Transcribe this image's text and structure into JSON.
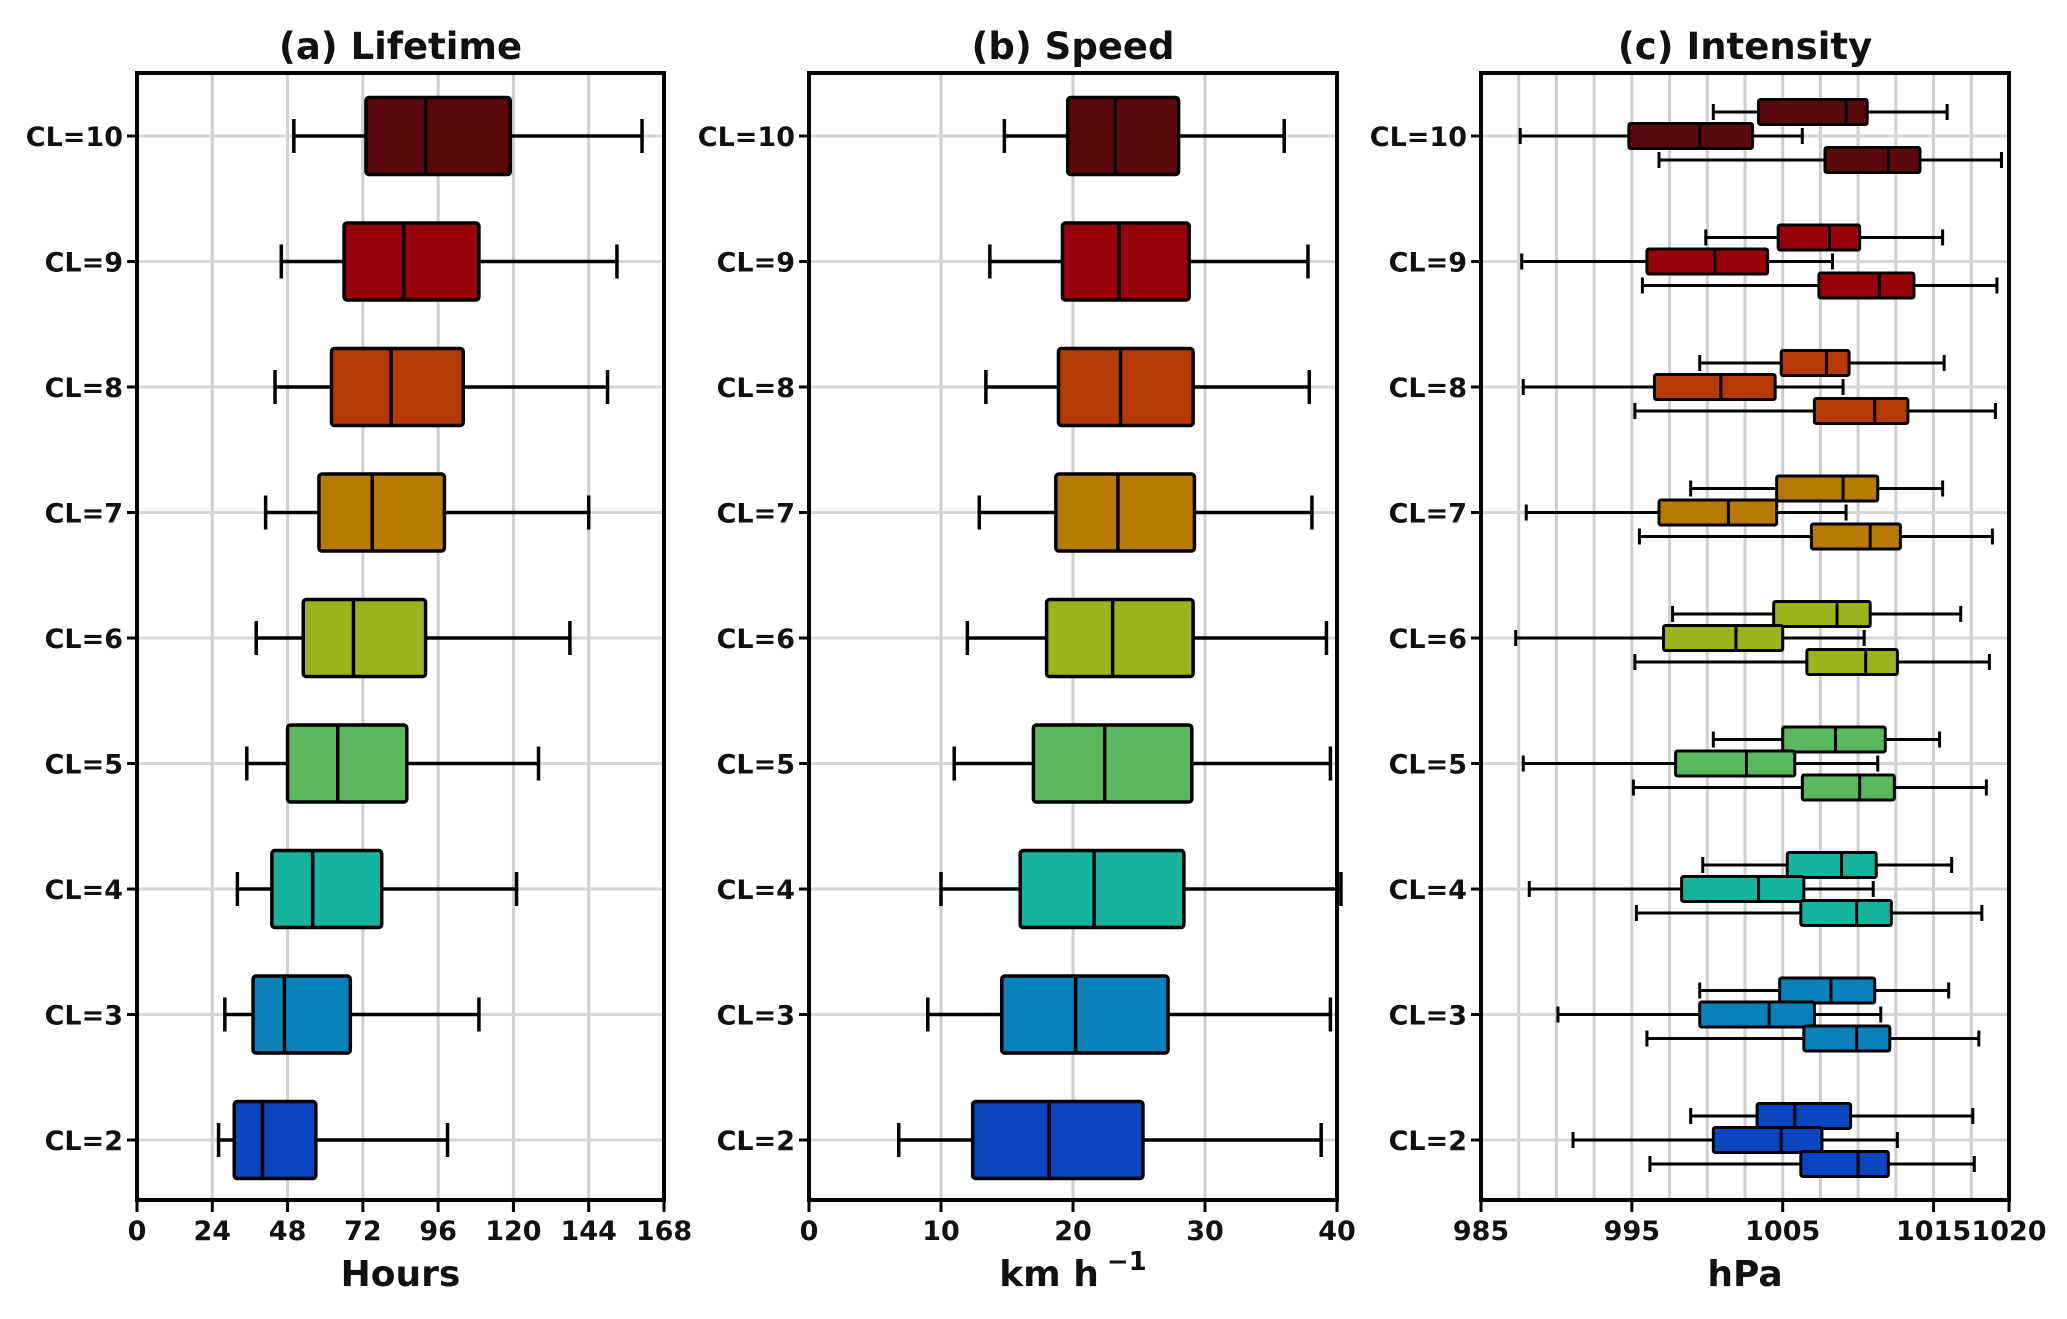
{
  "chart_data": [
    {
      "type": "boxplot",
      "title": "(a) Lifetime",
      "xlabel": "Hours",
      "xlim": [
        0,
        168
      ],
      "xticks": [
        0,
        24,
        48,
        72,
        96,
        120,
        144,
        168
      ],
      "grid": true,
      "categories": [
        "CL=10",
        "CL=9",
        "CL=8",
        "CL=7",
        "CL=6",
        "CL=5",
        "CL=4",
        "CL=3",
        "CL=2"
      ],
      "series": [
        {
          "boxes": [
            {
              "min": 50,
              "q1": 73,
              "median": 92,
              "q3": 119,
              "max": 161
            },
            {
              "min": 46,
              "q1": 66,
              "median": 85,
              "q3": 109,
              "max": 153
            },
            {
              "min": 44,
              "q1": 62,
              "median": 81,
              "q3": 104,
              "max": 150
            },
            {
              "min": 41,
              "q1": 58,
              "median": 75,
              "q3": 98,
              "max": 144
            },
            {
              "min": 38,
              "q1": 53,
              "median": 69,
              "q3": 92,
              "max": 138
            },
            {
              "min": 35,
              "q1": 48,
              "median": 64,
              "q3": 86,
              "max": 128
            },
            {
              "min": 32,
              "q1": 43,
              "median": 56,
              "q3": 78,
              "max": 121
            },
            {
              "min": 28,
              "q1": 37,
              "median": 47,
              "q3": 68,
              "max": 109
            },
            {
              "min": 26,
              "q1": 31,
              "median": 40,
              "q3": 57,
              "max": 99
            }
          ]
        }
      ]
    },
    {
      "type": "boxplot",
      "title": "(b) Speed",
      "xlabel": "km h",
      "xlabel_sup": "−1",
      "xlim": [
        0,
        40
      ],
      "xticks": [
        0,
        10,
        20,
        30,
        40
      ],
      "grid": true,
      "categories": [
        "CL=10",
        "CL=9",
        "CL=8",
        "CL=7",
        "CL=6",
        "CL=5",
        "CL=4",
        "CL=3",
        "CL=2"
      ],
      "series": [
        {
          "boxes": [
            {
              "min": 14.8,
              "q1": 19.6,
              "median": 23.2,
              "q3": 28.0,
              "max": 36.0
            },
            {
              "min": 13.7,
              "q1": 19.2,
              "median": 23.5,
              "q3": 28.8,
              "max": 37.8
            },
            {
              "min": 13.4,
              "q1": 18.9,
              "median": 23.6,
              "q3": 29.1,
              "max": 37.9
            },
            {
              "min": 12.9,
              "q1": 18.7,
              "median": 23.4,
              "q3": 29.2,
              "max": 38.1
            },
            {
              "min": 12.0,
              "q1": 18.0,
              "median": 23.0,
              "q3": 29.1,
              "max": 39.2
            },
            {
              "min": 11.0,
              "q1": 17.0,
              "median": 22.4,
              "q3": 29.0,
              "max": 39.5
            },
            {
              "min": 10.0,
              "q1": 16.0,
              "median": 21.6,
              "q3": 28.4,
              "max": 40.3
            },
            {
              "min": 9.0,
              "q1": 14.6,
              "median": 20.2,
              "q3": 27.2,
              "max": 39.5
            },
            {
              "min": 6.8,
              "q1": 12.4,
              "median": 18.2,
              "q3": 25.3,
              "max": 38.8
            }
          ]
        }
      ]
    },
    {
      "type": "boxplot",
      "title": "(c) Intensity",
      "xlabel": "hPa",
      "xlim": [
        985,
        1020
      ],
      "xticks": [
        985,
        995,
        1005,
        1015,
        1020
      ],
      "grid": true,
      "grid_step": 2.5,
      "categories": [
        "CL=10",
        "CL=9",
        "CL=8",
        "CL=7",
        "CL=6",
        "CL=5",
        "CL=4",
        "CL=3",
        "CL=2"
      ],
      "series": [
        {
          "boxes": [
            {
              "min": 1000.4,
              "q1": 1003.4,
              "median": 1009.2,
              "q3": 1010.6,
              "max": 1015.9
            },
            {
              "min": 999.9,
              "q1": 1004.7,
              "median": 1008.1,
              "q3": 1010.1,
              "max": 1015.6
            },
            {
              "min": 999.5,
              "q1": 1004.9,
              "median": 1007.9,
              "q3": 1009.4,
              "max": 1015.7
            },
            {
              "min": 998.9,
              "q1": 1004.6,
              "median": 1009.0,
              "q3": 1011.3,
              "max": 1015.6
            },
            {
              "min": 997.7,
              "q1": 1004.4,
              "median": 1008.6,
              "q3": 1010.8,
              "max": 1016.8
            },
            {
              "min": 1000.4,
              "q1": 1005.0,
              "median": 1008.5,
              "q3": 1011.8,
              "max": 1015.4
            },
            {
              "min": 999.7,
              "q1": 1005.3,
              "median": 1008.9,
              "q3": 1011.2,
              "max": 1016.2
            },
            {
              "min": 999.5,
              "q1": 1004.8,
              "median": 1008.2,
              "q3": 1011.1,
              "max": 1016.0
            },
            {
              "min": 998.9,
              "q1": 1003.3,
              "median": 1005.8,
              "q3": 1009.5,
              "max": 1017.6
            }
          ]
        },
        {
          "boxes": [
            {
              "min": 987.6,
              "q1": 994.8,
              "median": 999.5,
              "q3": 1003.0,
              "max": 1006.3
            },
            {
              "min": 987.7,
              "q1": 996.0,
              "median": 1000.5,
              "q3": 1004.0,
              "max": 1008.3
            },
            {
              "min": 987.8,
              "q1": 996.5,
              "median": 1000.9,
              "q3": 1004.5,
              "max": 1009.0
            },
            {
              "min": 988.0,
              "q1": 996.8,
              "median": 1001.4,
              "q3": 1004.6,
              "max": 1009.2
            },
            {
              "min": 987.3,
              "q1": 997.1,
              "median": 1001.9,
              "q3": 1005.0,
              "max": 1010.4
            },
            {
              "min": 987.8,
              "q1": 997.9,
              "median": 1002.6,
              "q3": 1005.8,
              "max": 1011.3
            },
            {
              "min": 988.2,
              "q1": 998.3,
              "median": 1003.4,
              "q3": 1006.4,
              "max": 1011.0
            },
            {
              "min": 990.1,
              "q1": 999.5,
              "median": 1004.1,
              "q3": 1007.1,
              "max": 1011.5
            },
            {
              "min": 991.1,
              "q1": 1000.4,
              "median": 1004.9,
              "q3": 1007.6,
              "max": 1012.6
            }
          ]
        },
        {
          "boxes": [
            {
              "min": 996.8,
              "q1": 1007.8,
              "median": 1012.0,
              "q3": 1014.1,
              "max": 1019.5
            },
            {
              "min": 995.7,
              "q1": 1007.4,
              "median": 1011.4,
              "q3": 1013.7,
              "max": 1019.2
            },
            {
              "min": 995.2,
              "q1": 1007.1,
              "median": 1011.1,
              "q3": 1013.3,
              "max": 1019.1
            },
            {
              "min": 995.5,
              "q1": 1006.9,
              "median": 1010.8,
              "q3": 1012.8,
              "max": 1018.9
            },
            {
              "min": 995.2,
              "q1": 1006.6,
              "median": 1010.5,
              "q3": 1012.6,
              "max": 1018.7
            },
            {
              "min": 995.1,
              "q1": 1006.3,
              "median": 1010.1,
              "q3": 1012.4,
              "max": 1018.5
            },
            {
              "min": 995.3,
              "q1": 1006.2,
              "median": 1009.9,
              "q3": 1012.2,
              "max": 1018.2
            },
            {
              "min": 996.0,
              "q1": 1006.4,
              "median": 1009.9,
              "q3": 1012.1,
              "max": 1018.0
            },
            {
              "min": 996.2,
              "q1": 1006.2,
              "median": 1010.0,
              "q3": 1012.0,
              "max": 1017.7
            }
          ]
        }
      ]
    }
  ],
  "colors": [
    "#5a0a0c",
    "#960409",
    "#b63a06",
    "#b77b03",
    "#9cb41b",
    "#5bb85f",
    "#16b39c",
    "#0a81ba",
    "#0b46c0"
  ]
}
